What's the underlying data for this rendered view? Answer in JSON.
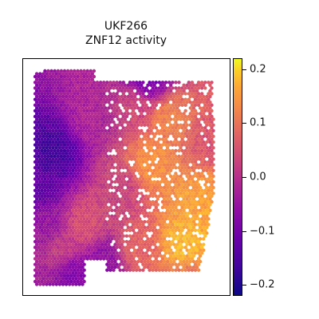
{
  "chart_data": {
    "type": "heatmap",
    "title_line1": "UKF266",
    "title_line2": "ZNF12 activity",
    "xlabel": "",
    "ylabel": "",
    "colormap": "plasma",
    "colorbar": {
      "vmin": -0.22,
      "vmax": 0.22,
      "ticks": [
        {
          "value": 0.2,
          "label": "0.2"
        },
        {
          "value": 0.1,
          "label": "0.1"
        },
        {
          "value": 0.0,
          "label": "0.0"
        },
        {
          "value": -0.1,
          "label": "−0.1"
        },
        {
          "value": -0.2,
          "label": "−0.2"
        }
      ]
    },
    "axes_ticks_visible": false,
    "grid": false,
    "regions": [
      {
        "x": 0.08,
        "y": 0.55,
        "value": -0.12
      },
      {
        "x": 0.15,
        "y": 0.4,
        "value": -0.16
      },
      {
        "x": 0.12,
        "y": 0.7,
        "value": -0.05
      },
      {
        "x": 0.2,
        "y": 0.8,
        "value": 0.02
      },
      {
        "x": 0.3,
        "y": 0.7,
        "value": 0.05
      },
      {
        "x": 0.35,
        "y": 0.25,
        "value": -0.02
      },
      {
        "x": 0.25,
        "y": 0.9,
        "value": -0.08
      },
      {
        "x": 0.4,
        "y": 0.85,
        "value": -0.06
      },
      {
        "x": 0.55,
        "y": 0.8,
        "value": 0.08
      },
      {
        "x": 0.62,
        "y": 0.45,
        "value": 0.14
      },
      {
        "x": 0.7,
        "y": 0.25,
        "value": 0.12
      },
      {
        "x": 0.78,
        "y": 0.78,
        "value": 0.18
      },
      {
        "x": 0.85,
        "y": 0.6,
        "value": 0.16
      },
      {
        "x": 0.55,
        "y": 0.2,
        "value": 0.04
      },
      {
        "x": 0.48,
        "y": 0.55,
        "value": 0.03
      },
      {
        "x": 0.6,
        "y": 0.1,
        "value": -0.1
      },
      {
        "x": 0.9,
        "y": 0.35,
        "value": 0.06
      },
      {
        "x": 0.8,
        "y": 0.95,
        "value": 0.1
      }
    ]
  }
}
